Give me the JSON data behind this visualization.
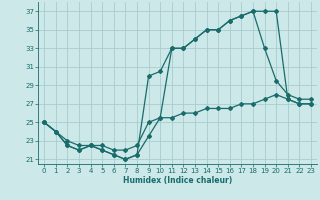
{
  "xlabel": "Humidex (Indice chaleur)",
  "bg_color": "#cce8e8",
  "grid_color": "#aacccc",
  "line_color": "#1a6b6b",
  "ylim": [
    20.5,
    38.0
  ],
  "xlim": [
    -0.5,
    23.5
  ],
  "yticks": [
    21,
    23,
    25,
    27,
    29,
    31,
    33,
    35,
    37
  ],
  "xticks": [
    0,
    1,
    2,
    3,
    4,
    5,
    6,
    7,
    8,
    9,
    10,
    11,
    12,
    13,
    14,
    15,
    16,
    17,
    18,
    19,
    20,
    21,
    22,
    23
  ],
  "line1_x": [
    0,
    1,
    2,
    3,
    4,
    5,
    6,
    7,
    8,
    9,
    10,
    11,
    12,
    13,
    14,
    15,
    16,
    17,
    18,
    19,
    20,
    21,
    22,
    23
  ],
  "line1_y": [
    25,
    24,
    22.5,
    22,
    22.5,
    22,
    21.5,
    21,
    21.5,
    23.5,
    25.5,
    33,
    33,
    34,
    35,
    35,
    36,
    36.5,
    37,
    37,
    37,
    27.5,
    27,
    27
  ],
  "line2_x": [
    0,
    1,
    2,
    3,
    4,
    5,
    6,
    7,
    8,
    9,
    10,
    11,
    12,
    13,
    14,
    15,
    16,
    17,
    18,
    19,
    20,
    21,
    22,
    23
  ],
  "line2_y": [
    25,
    24,
    22.5,
    22,
    22.5,
    22,
    21.5,
    21,
    21.5,
    30,
    30.5,
    33,
    33,
    34,
    35,
    35,
    36,
    36.5,
    37,
    33,
    29.5,
    28,
    27.5,
    27.5
  ],
  "line3_x": [
    0,
    1,
    2,
    3,
    4,
    5,
    6,
    7,
    8,
    9,
    10,
    11,
    12,
    13,
    14,
    15,
    16,
    17,
    18,
    19,
    20,
    21,
    22,
    23
  ],
  "line3_y": [
    25,
    24,
    23,
    22.5,
    22.5,
    22.5,
    22,
    22,
    22.5,
    25,
    25.5,
    25.5,
    26,
    26,
    26.5,
    26.5,
    26.5,
    27,
    27,
    27.5,
    28,
    27.5,
    27,
    27
  ]
}
